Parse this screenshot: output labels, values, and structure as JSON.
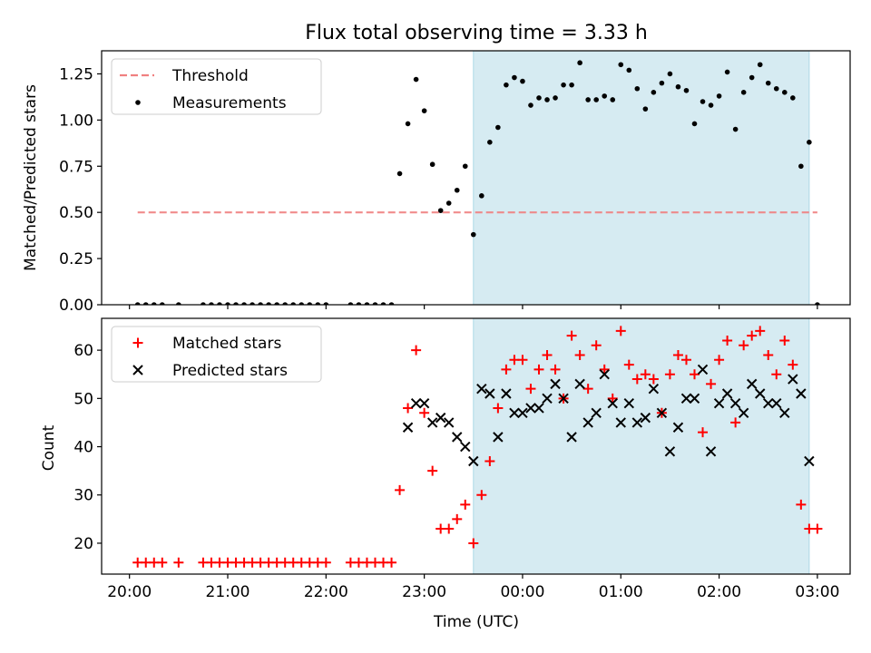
{
  "chart_data": [
    {
      "type": "scatter",
      "title": "Flux total observing time = 3.33 h",
      "xlabel": "",
      "ylabel": "Matched/Predicted stars",
      "xlim": [
        "2024-01-01 19:43",
        "2024-01-02 03:20"
      ],
      "ylim": [
        0,
        1.375
      ],
      "yticks": [
        0.0,
        0.25,
        0.5,
        0.75,
        1.0,
        1.25
      ],
      "ytick_labels": [
        "0.00",
        "0.25",
        "0.50",
        "0.75",
        "1.00",
        "1.25"
      ],
      "shaded_interval": [
        "2024-01-01 23:30",
        "2024-01-02 02:55"
      ],
      "legend_position": "upper left",
      "series": [
        {
          "name": "Threshold",
          "kind": "dashed-line",
          "color": "#f08080",
          "x": [
            "2024-01-01 20:05",
            "2024-01-02 03:00"
          ],
          "y": [
            0.5,
            0.5
          ]
        },
        {
          "name": "Measurements",
          "kind": "dot",
          "color": "#000000",
          "x": [
            "2024-01-01 20:05",
            "2024-01-01 20:10",
            "2024-01-01 20:15",
            "2024-01-01 20:20",
            "2024-01-01 20:30",
            "2024-01-01 20:45",
            "2024-01-01 20:50",
            "2024-01-01 20:55",
            "2024-01-01 21:00",
            "2024-01-01 21:05",
            "2024-01-01 21:10",
            "2024-01-01 21:15",
            "2024-01-01 21:20",
            "2024-01-01 21:25",
            "2024-01-01 21:30",
            "2024-01-01 21:35",
            "2024-01-01 21:40",
            "2024-01-01 21:45",
            "2024-01-01 21:50",
            "2024-01-01 21:55",
            "2024-01-01 22:00",
            "2024-01-01 22:15",
            "2024-01-01 22:20",
            "2024-01-01 22:25",
            "2024-01-01 22:30",
            "2024-01-01 22:35",
            "2024-01-01 22:40",
            "2024-01-01 22:45",
            "2024-01-01 22:50",
            "2024-01-01 22:55",
            "2024-01-01 23:00",
            "2024-01-01 23:05",
            "2024-01-01 23:10",
            "2024-01-01 23:15",
            "2024-01-01 23:20",
            "2024-01-01 23:25",
            "2024-01-01 23:30",
            "2024-01-01 23:35",
            "2024-01-01 23:40",
            "2024-01-01 23:45",
            "2024-01-01 23:50",
            "2024-01-01 23:55",
            "2024-01-02 00:00",
            "2024-01-02 00:05",
            "2024-01-02 00:10",
            "2024-01-02 00:15",
            "2024-01-02 00:20",
            "2024-01-02 00:25",
            "2024-01-02 00:30",
            "2024-01-02 00:35",
            "2024-01-02 00:40",
            "2024-01-02 00:45",
            "2024-01-02 00:50",
            "2024-01-02 00:55",
            "2024-01-02 01:00",
            "2024-01-02 01:05",
            "2024-01-02 01:10",
            "2024-01-02 01:15",
            "2024-01-02 01:20",
            "2024-01-02 01:25",
            "2024-01-02 01:30",
            "2024-01-02 01:35",
            "2024-01-02 01:40",
            "2024-01-02 01:45",
            "2024-01-02 01:50",
            "2024-01-02 01:55",
            "2024-01-02 02:00",
            "2024-01-02 02:05",
            "2024-01-02 02:10",
            "2024-01-02 02:15",
            "2024-01-02 02:20",
            "2024-01-02 02:25",
            "2024-01-02 02:30",
            "2024-01-02 02:35",
            "2024-01-02 02:40",
            "2024-01-02 02:45",
            "2024-01-02 02:50",
            "2024-01-02 02:55",
            "2024-01-02 03:00"
          ],
          "y": [
            0,
            0,
            0,
            0,
            0,
            0,
            0,
            0,
            0,
            0,
            0,
            0,
            0,
            0,
            0,
            0,
            0,
            0,
            0,
            0,
            0,
            0,
            0,
            0,
            0,
            0,
            0,
            0.71,
            0.98,
            1.22,
            1.05,
            0.76,
            0.51,
            0.55,
            0.62,
            0.75,
            0.38,
            0.59,
            0.88,
            0.96,
            1.19,
            1.23,
            1.21,
            1.08,
            1.12,
            1.11,
            1.12,
            1.19,
            1.19,
            1.31,
            1.11,
            1.11,
            1.13,
            1.11,
            1.3,
            1.27,
            1.17,
            1.06,
            1.15,
            1.2,
            1.25,
            1.18,
            1.16,
            0.98,
            1.1,
            1.08,
            1.13,
            1.26,
            0.95,
            1.15,
            1.23,
            1.3,
            1.2,
            1.17,
            1.15,
            1.12,
            0.75,
            0.88,
            0
          ]
        }
      ]
    },
    {
      "type": "scatter",
      "title": "",
      "xlabel": "Time (UTC)",
      "ylabel": "Count",
      "xlim": [
        "2024-01-01 19:43",
        "2024-01-02 03:20"
      ],
      "ylim": [
        13.6,
        66.6
      ],
      "yticks": [
        20,
        30,
        40,
        50,
        60
      ],
      "ytick_labels": [
        "20",
        "30",
        "40",
        "50",
        "60"
      ],
      "xticks": [
        "2024-01-01 20:00",
        "2024-01-01 21:00",
        "2024-01-01 22:00",
        "2024-01-01 23:00",
        "2024-01-02 00:00",
        "2024-01-02 01:00",
        "2024-01-02 02:00",
        "2024-01-02 03:00"
      ],
      "xtick_labels": [
        "20:00",
        "21:00",
        "22:00",
        "23:00",
        "00:00",
        "01:00",
        "02:00",
        "03:00"
      ],
      "shaded_interval": [
        "2024-01-01 23:30",
        "2024-01-02 02:55"
      ],
      "legend_position": "upper left",
      "series": [
        {
          "name": "Matched stars",
          "kind": "plus",
          "color": "#ff0000",
          "x": [
            "2024-01-01 20:05",
            "2024-01-01 20:10",
            "2024-01-01 20:15",
            "2024-01-01 20:20",
            "2024-01-01 20:30",
            "2024-01-01 20:45",
            "2024-01-01 20:50",
            "2024-01-01 20:55",
            "2024-01-01 21:00",
            "2024-01-01 21:05",
            "2024-01-01 21:10",
            "2024-01-01 21:15",
            "2024-01-01 21:20",
            "2024-01-01 21:25",
            "2024-01-01 21:30",
            "2024-01-01 21:35",
            "2024-01-01 21:40",
            "2024-01-01 21:45",
            "2024-01-01 21:50",
            "2024-01-01 21:55",
            "2024-01-01 22:00",
            "2024-01-01 22:15",
            "2024-01-01 22:20",
            "2024-01-01 22:25",
            "2024-01-01 22:30",
            "2024-01-01 22:35",
            "2024-01-01 22:40",
            "2024-01-01 22:45",
            "2024-01-01 22:50",
            "2024-01-01 22:55",
            "2024-01-01 23:00",
            "2024-01-01 23:05",
            "2024-01-01 23:10",
            "2024-01-01 23:15",
            "2024-01-01 23:20",
            "2024-01-01 23:25",
            "2024-01-01 23:30",
            "2024-01-01 23:35",
            "2024-01-01 23:40",
            "2024-01-01 23:45",
            "2024-01-01 23:50",
            "2024-01-01 23:55",
            "2024-01-02 00:00",
            "2024-01-02 00:05",
            "2024-01-02 00:10",
            "2024-01-02 00:15",
            "2024-01-02 00:20",
            "2024-01-02 00:25",
            "2024-01-02 00:30",
            "2024-01-02 00:35",
            "2024-01-02 00:40",
            "2024-01-02 00:45",
            "2024-01-02 00:50",
            "2024-01-02 00:55",
            "2024-01-02 01:00",
            "2024-01-02 01:05",
            "2024-01-02 01:10",
            "2024-01-02 01:15",
            "2024-01-02 01:20",
            "2024-01-02 01:25",
            "2024-01-02 01:30",
            "2024-01-02 01:35",
            "2024-01-02 01:40",
            "2024-01-02 01:45",
            "2024-01-02 01:50",
            "2024-01-02 01:55",
            "2024-01-02 02:00",
            "2024-01-02 02:05",
            "2024-01-02 02:10",
            "2024-01-02 02:15",
            "2024-01-02 02:20",
            "2024-01-02 02:25",
            "2024-01-02 02:30",
            "2024-01-02 02:35",
            "2024-01-02 02:40",
            "2024-01-02 02:45",
            "2024-01-02 02:50",
            "2024-01-02 02:55",
            "2024-01-02 03:00"
          ],
          "y": [
            16,
            16,
            16,
            16,
            16,
            16,
            16,
            16,
            16,
            16,
            16,
            16,
            16,
            16,
            16,
            16,
            16,
            16,
            16,
            16,
            16,
            16,
            16,
            16,
            16,
            16,
            16,
            31,
            48,
            60,
            47,
            35,
            23,
            23,
            25,
            28,
            20,
            30,
            37,
            48,
            56,
            58,
            58,
            52,
            56,
            59,
            56,
            50,
            63,
            59,
            52,
            61,
            56,
            50,
            64,
            57,
            54,
            55,
            54,
            47,
            55,
            59,
            58,
            55,
            43,
            53,
            58,
            62,
            45,
            61,
            63,
            64,
            59,
            55,
            62,
            57,
            28,
            23,
            23
          ]
        },
        {
          "name": "Predicted stars",
          "kind": "cross",
          "color": "#000000",
          "x": [
            "2024-01-01 22:50",
            "2024-01-01 22:55",
            "2024-01-01 23:00",
            "2024-01-01 23:05",
            "2024-01-01 23:10",
            "2024-01-01 23:15",
            "2024-01-01 23:20",
            "2024-01-01 23:25",
            "2024-01-01 23:30",
            "2024-01-01 23:35",
            "2024-01-01 23:40",
            "2024-01-01 23:45",
            "2024-01-01 23:50",
            "2024-01-01 23:55",
            "2024-01-02 00:00",
            "2024-01-02 00:05",
            "2024-01-02 00:10",
            "2024-01-02 00:15",
            "2024-01-02 00:20",
            "2024-01-02 00:25",
            "2024-01-02 00:30",
            "2024-01-02 00:35",
            "2024-01-02 00:40",
            "2024-01-02 00:45",
            "2024-01-02 00:50",
            "2024-01-02 00:55",
            "2024-01-02 01:00",
            "2024-01-02 01:05",
            "2024-01-02 01:10",
            "2024-01-02 01:15",
            "2024-01-02 01:20",
            "2024-01-02 01:25",
            "2024-01-02 01:30",
            "2024-01-02 01:35",
            "2024-01-02 01:40",
            "2024-01-02 01:45",
            "2024-01-02 01:50",
            "2024-01-02 01:55",
            "2024-01-02 02:00",
            "2024-01-02 02:05",
            "2024-01-02 02:10",
            "2024-01-02 02:15",
            "2024-01-02 02:20",
            "2024-01-02 02:25",
            "2024-01-02 02:30",
            "2024-01-02 02:35",
            "2024-01-02 02:40",
            "2024-01-02 02:45",
            "2024-01-02 02:50",
            "2024-01-02 02:55"
          ],
          "y": [
            44,
            49,
            49,
            45,
            46,
            45,
            42,
            40,
            37,
            52,
            51,
            42,
            51,
            47,
            47,
            48,
            48,
            50,
            53,
            50,
            42,
            53,
            45,
            47,
            55,
            49,
            45,
            49,
            45,
            46,
            52,
            47,
            39,
            44,
            50,
            50,
            56,
            39,
            49,
            51,
            49,
            47,
            53,
            51,
            49,
            49,
            47,
            54,
            51,
            37
          ]
        }
      ]
    }
  ]
}
